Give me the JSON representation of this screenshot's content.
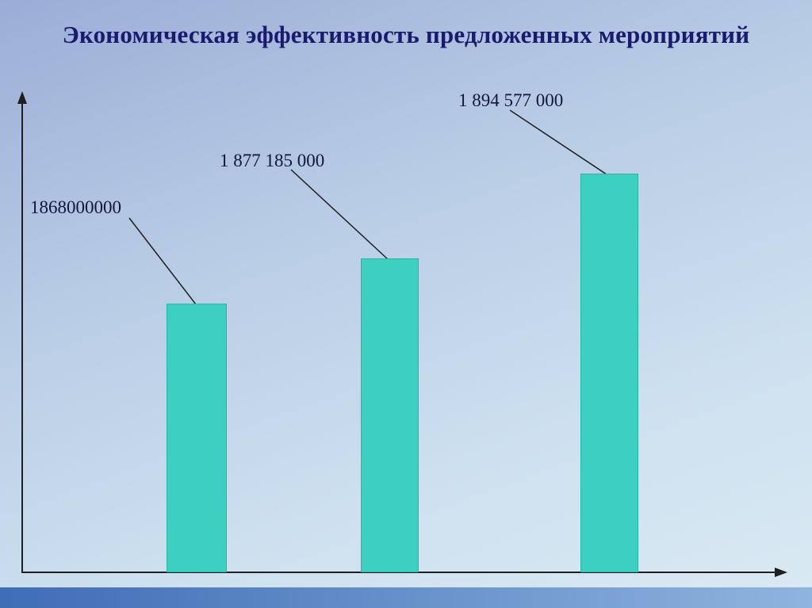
{
  "slide": {
    "title": "Экономическая эффективность предложенных мероприятий"
  },
  "chart_data": {
    "type": "bar",
    "title": "Экономическая эффективность предложенных мероприятий",
    "categories": [
      "",
      "",
      ""
    ],
    "values": [
      1868000000,
      1877185000,
      1894577000
    ],
    "labels": [
      "1868000000",
      "1 877 185 000",
      "1 894 577 000"
    ],
    "ylim": [
      1813000000,
      1909000000
    ],
    "xlabel": "",
    "ylabel": "",
    "grid": false,
    "legend": false,
    "bar_color": "#3dcfc0",
    "axis_color": "#1f1f1f",
    "label_color": "#14143c",
    "title_color": "#1a1a6e"
  }
}
